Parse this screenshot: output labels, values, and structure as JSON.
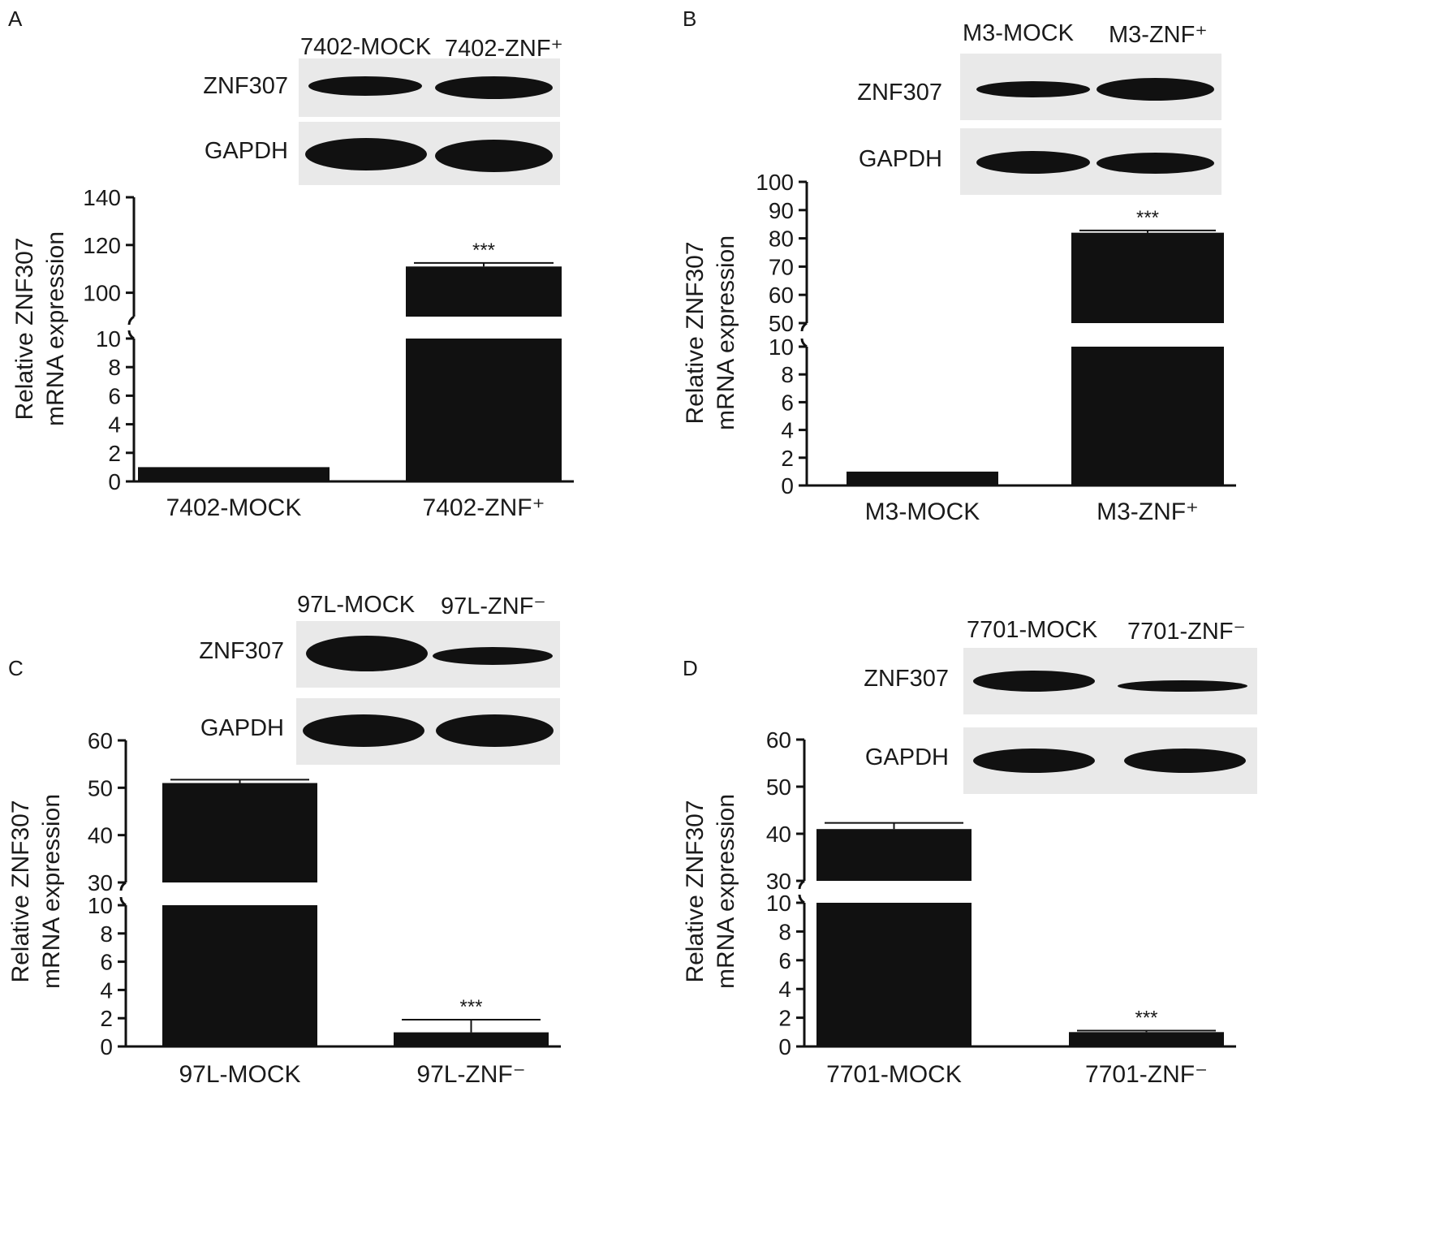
{
  "panels": [
    {
      "letter": "A",
      "blot": {
        "lanes": [
          "7402-MOCK",
          "7402-ZNF⁺"
        ],
        "rows": [
          "ZNF307",
          "GAPDH"
        ],
        "intensity": {
          "ZNF307": [
            0.25,
            0.85
          ],
          "GAPDH": [
            1.0,
            1.0
          ]
        }
      },
      "chart_data": {
        "type": "bar",
        "categories": [
          "7402-MOCK",
          "7402-ZNF⁺"
        ],
        "values": [
          1,
          111
        ],
        "error": [
          0,
          1.5
        ],
        "significance": [
          "",
          "***"
        ],
        "ylabel": [
          "Relative ZNF307",
          "mRNA expression"
        ],
        "axis_break": {
          "lower": [
            0,
            10
          ],
          "upper": [
            90,
            140
          ]
        },
        "lower_ticks": [
          0,
          2,
          4,
          6,
          8,
          10
        ],
        "upper_ticks": [
          100,
          120,
          140
        ]
      }
    },
    {
      "letter": "B",
      "blot": {
        "lanes": [
          "M3-MOCK",
          "M3-ZNF⁺"
        ],
        "rows": [
          "ZNF307",
          "GAPDH"
        ],
        "intensity": {
          "ZNF307": [
            0.35,
            0.95
          ],
          "GAPDH": [
            1.0,
            1.0
          ]
        }
      },
      "chart_data": {
        "type": "bar",
        "categories": [
          "M3-MOCK",
          "M3-ZNF⁺"
        ],
        "values": [
          1,
          82
        ],
        "error": [
          0,
          0.8
        ],
        "significance": [
          "",
          "***"
        ],
        "ylabel": [
          "Relative ZNF307",
          "mRNA expression"
        ],
        "axis_break": {
          "lower": [
            0,
            10
          ],
          "upper": [
            50,
            100
          ]
        },
        "lower_ticks": [
          0,
          2,
          4,
          6,
          8,
          10
        ],
        "upper_ticks": [
          50,
          60,
          70,
          80,
          90,
          100
        ]
      }
    },
    {
      "letter": "C",
      "blot": {
        "lanes": [
          "97L-MOCK",
          "97L-ZNF⁻"
        ],
        "rows": [
          "ZNF307",
          "GAPDH"
        ],
        "intensity": {
          "ZNF307": [
            1.0,
            0.5
          ],
          "GAPDH": [
            1.0,
            1.0
          ]
        }
      },
      "chart_data": {
        "type": "bar",
        "categories": [
          "97L-MOCK",
          "97L-ZNF⁻"
        ],
        "values": [
          51,
          1
        ],
        "error": [
          0.7,
          0.9
        ],
        "significance": [
          "",
          "***"
        ],
        "ylabel": [
          "Relative ZNF307",
          "mRNA expression"
        ],
        "axis_break": {
          "lower": [
            0,
            10
          ],
          "upper": [
            30,
            60
          ]
        },
        "lower_ticks": [
          0,
          2,
          4,
          6,
          8,
          10
        ],
        "upper_ticks": [
          30,
          40,
          50,
          60
        ]
      }
    },
    {
      "letter": "D",
      "blot": {
        "lanes": [
          "7701-MOCK",
          "7701-ZNF⁻"
        ],
        "rows": [
          "ZNF307",
          "GAPDH"
        ],
        "intensity": {
          "ZNF307": [
            0.9,
            0.35
          ],
          "GAPDH": [
            1.0,
            1.0
          ]
        }
      },
      "chart_data": {
        "type": "bar",
        "categories": [
          "7701-MOCK",
          "7701-ZNF⁻"
        ],
        "values": [
          41,
          1
        ],
        "error": [
          1.3,
          0.1
        ],
        "significance": [
          "",
          "***"
        ],
        "ylabel": [
          "Relative ZNF307",
          "mRNA expression"
        ],
        "axis_break": {
          "lower": [
            0,
            10
          ],
          "upper": [
            30,
            60
          ]
        },
        "lower_ticks": [
          0,
          2,
          4,
          6,
          8,
          10
        ],
        "upper_ticks": [
          30,
          40,
          50,
          60
        ]
      }
    }
  ]
}
